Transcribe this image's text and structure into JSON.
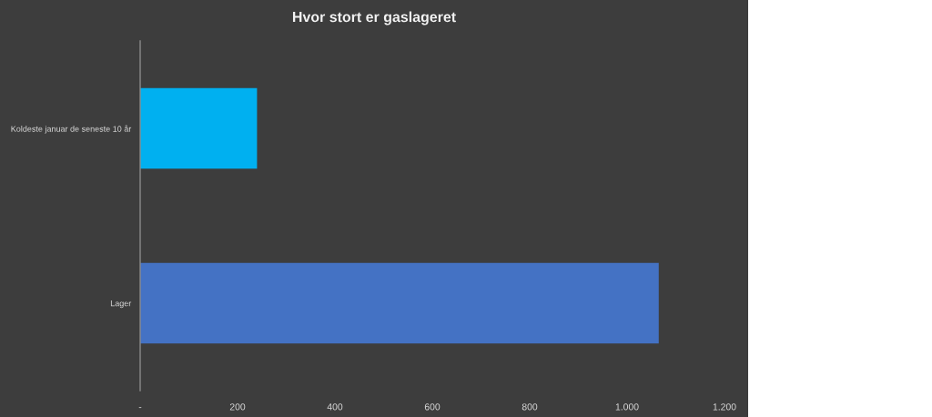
{
  "chart_data": {
    "type": "bar",
    "orientation": "horizontal",
    "title": "Hvor stort er gaslageret",
    "categories": [
      "Koldeste januar de seneste 10 år",
      "Lager"
    ],
    "values": [
      240,
      1065
    ],
    "colors": [
      "#00b0f0",
      "#4472c4"
    ],
    "xlim": [
      0,
      1200
    ],
    "xticks": [
      {
        "value": 0,
        "label": "-"
      },
      200,
      400,
      600,
      800,
      {
        "value": 1000,
        "label": "1.000"
      },
      {
        "value": 1200,
        "label": "1.200"
      }
    ],
    "grid": false
  }
}
